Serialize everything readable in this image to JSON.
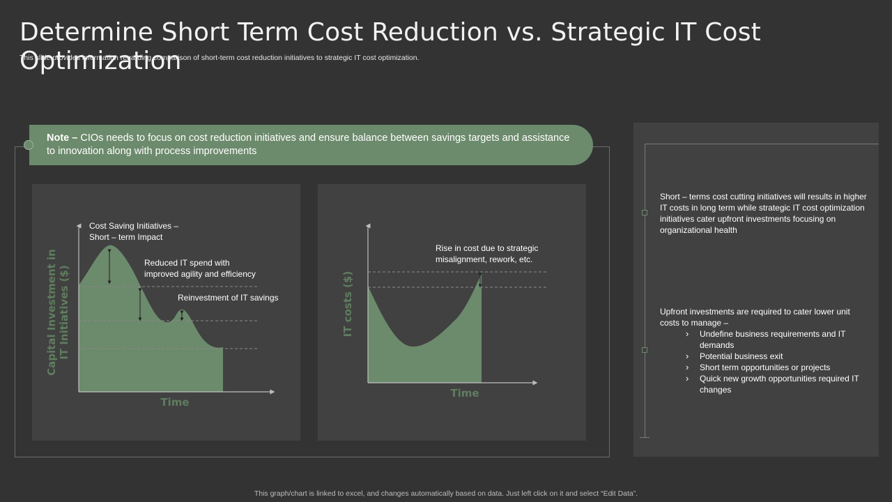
{
  "title": "Determine Short Term Cost Reduction vs. Strategic IT Cost Optimization",
  "subtitle": "This slide provides information regarding comparison of  short-term cost reduction initiatives to strategic IT cost optimization.",
  "note": {
    "label": "Note –",
    "text": " CIOs needs to focus on cost reduction initiatives and ensure balance between savings targets and assistance to innovation along with process improvements"
  },
  "left_chart": {
    "ylabel_line1": "Capital Investment in",
    "ylabel_line2": "IT Initiatives ($)",
    "xlabel": "Time",
    "annotation1_line1": "Cost Saving Initiatives –",
    "annotation1_line2": "Short – term Impact",
    "annotation2_line1": "Reduced  IT spend with",
    "annotation2_line2": "improved  agility and efficiency",
    "annotation3": "Reinvestment  of IT savings"
  },
  "mid_chart": {
    "ylabel": "IT costs ($)",
    "xlabel": "Time",
    "annotation_line1": "Rise in cost due to strategic",
    "annotation_line2": "misalignment,  rework,  etc."
  },
  "right_panel": {
    "block1": "Short – terms cost cutting initiatives will results in higher IT costs in long term while strategic IT cost optimization initiatives  cater upfront  investments focusing on organizational health",
    "block2_intro": "Upfront  investments  are required  to cater lower unit costs to manage  –",
    "bullets": [
      "Undefine  business requirements  and IT demands",
      "Potential business exit",
      "Short term opportunities or projects",
      "Quick new growth opportunities required  IT changes"
    ]
  },
  "colors": {
    "background": "#333333",
    "panel": "#414141",
    "accent_green": "#6c8a6c",
    "axis_label_green": "#5f7d5f"
  },
  "footer": "This graph/chart is linked to excel,  and changes automatically based on data. Just left click on it and select “Edit Data”."
}
